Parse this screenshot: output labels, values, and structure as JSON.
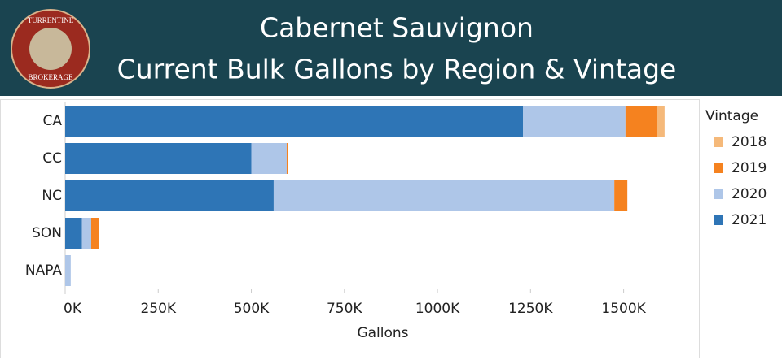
{
  "header": {
    "logo_top": "TURRENTINE",
    "logo_bottom": "BROKERAGE"
  },
  "chart_data": {
    "type": "stacked-barh",
    "title": "Cabernet Sauvignon",
    "subtitle": "Current Bulk Gallons by Region & Vintage",
    "x_label": "Gallons",
    "legend_title": "Vintage",
    "legend": "right",
    "categories": [
      "CA",
      "CC",
      "NC",
      "SON",
      "NAPA"
    ],
    "series": [
      {
        "name": "2021",
        "color": "#2e75b6",
        "values": [
          1230000,
          500000,
          560000,
          45000,
          0
        ]
      },
      {
        "name": "2020",
        "color": "#aec6e8",
        "values": [
          275000,
          95000,
          915000,
          25000,
          15000
        ]
      },
      {
        "name": "2019",
        "color": "#f5821f",
        "values": [
          85000,
          4000,
          35000,
          20000,
          0
        ]
      },
      {
        "name": "2018",
        "color": "#f5b97a",
        "values": [
          20000,
          0,
          0,
          0,
          0
        ]
      }
    ],
    "xlim": [
      0,
      1700000
    ],
    "xticks": [
      {
        "value": 0,
        "label": "0K"
      },
      {
        "value": 250000,
        "label": "250K"
      },
      {
        "value": 500000,
        "label": "500K"
      },
      {
        "value": 750000,
        "label": "750K"
      },
      {
        "value": 1000000,
        "label": "1000K"
      },
      {
        "value": 1250000,
        "label": "1250K"
      },
      {
        "value": 1500000,
        "label": "1500K"
      }
    ]
  }
}
